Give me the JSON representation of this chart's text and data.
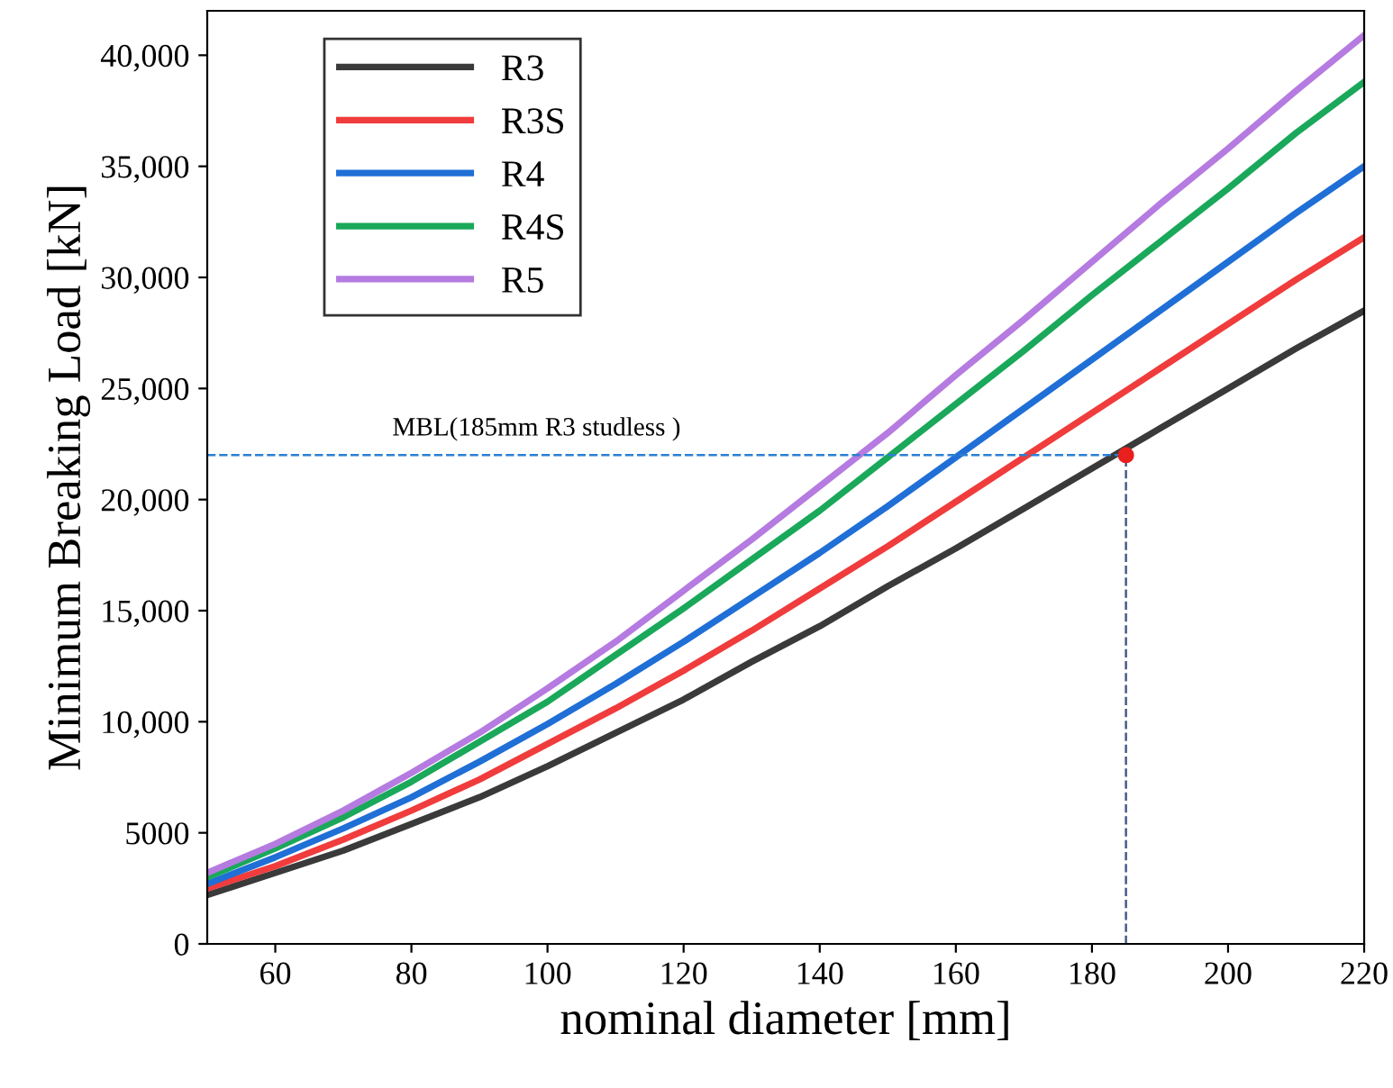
{
  "chart_data": {
    "type": "line",
    "xlabel": "nominal diameter [mm]",
    "ylabel": "Minimum Breaking Load [kN]",
    "x": [
      50,
      60,
      70,
      80,
      90,
      100,
      110,
      120,
      130,
      140,
      150,
      160,
      170,
      180,
      190,
      200,
      210,
      220
    ],
    "series": [
      {
        "name": "R3",
        "color": "#3a3a3a",
        "values": [
          2200,
          3200,
          4200,
          5400,
          6600,
          8000,
          9500,
          11000,
          12700,
          14300,
          16100,
          17800,
          19600,
          21400,
          23200,
          25000,
          26800,
          28500
        ]
      },
      {
        "name": "R3S",
        "color": "#f03c3c",
        "values": [
          2500,
          3500,
          4700,
          6000,
          7400,
          9000,
          10600,
          12300,
          14100,
          16000,
          17900,
          19900,
          21900,
          23900,
          25900,
          27900,
          29900,
          31800
        ]
      },
      {
        "name": "R4",
        "color": "#1f6fd6",
        "values": [
          2700,
          3900,
          5200,
          6600,
          8200,
          9900,
          11700,
          13600,
          15600,
          17600,
          19700,
          21900,
          24100,
          26300,
          28500,
          30700,
          32900,
          35000
        ]
      },
      {
        "name": "R4S",
        "color": "#1aa85a",
        "values": [
          3000,
          4300,
          5700,
          7300,
          9100,
          10900,
          13000,
          15100,
          17300,
          19500,
          21900,
          24300,
          26700,
          29200,
          31600,
          34000,
          36500,
          38800
        ]
      },
      {
        "name": "R5",
        "color": "#b57be0",
        "values": [
          3200,
          4500,
          6000,
          7700,
          9500,
          11500,
          13600,
          15900,
          18200,
          20600,
          23000,
          25600,
          28100,
          30700,
          33300,
          35800,
          38400,
          40900
        ]
      },
      {
        "type": "scatter",
        "marker": "circle",
        "color": "#e8201e",
        "x": [
          185
        ],
        "values": [
          22000
        ]
      }
    ],
    "annotations": [
      "MBL(185mm R3 studless )"
    ],
    "ref_lines": [
      {
        "axis": "y",
        "value": 22000,
        "color": "#2a7fd4",
        "line_style": "dashed"
      },
      {
        "axis": "x",
        "value": 185,
        "color": "#4a5a8a",
        "line_style": "dashed"
      }
    ],
    "xlim": [
      50,
      220
    ],
    "xticks": [
      60,
      80,
      100,
      120,
      140,
      160,
      180,
      200,
      220
    ],
    "ylim": [
      0,
      42000
    ],
    "yticks": [
      0,
      5000,
      {
        "value": 10000,
        "label": "10,000"
      },
      {
        "value": 15000,
        "label": "15,000"
      },
      {
        "value": 20000,
        "label": "20,000"
      },
      {
        "value": 25000,
        "label": "25,000"
      },
      {
        "value": 30000,
        "label": "30,000"
      },
      {
        "value": 35000,
        "label": "35,000"
      },
      {
        "value": 40000,
        "label": "40,000"
      }
    ],
    "legend": "top left",
    "grid": false,
    "marker": "none",
    "line_style": "solid"
  }
}
